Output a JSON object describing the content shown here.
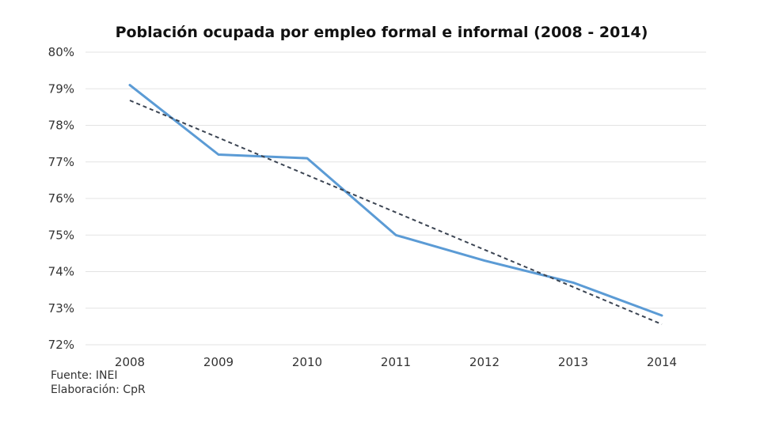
{
  "chart_data": {
    "type": "line",
    "title": "Población ocupada por empleo formal e informal (2008 - 2014)",
    "xlabel": "",
    "ylabel": "",
    "categories": [
      "2008",
      "2009",
      "2010",
      "2011",
      "2012",
      "2013",
      "2014"
    ],
    "series": [
      {
        "values": [
          79.1,
          77.2,
          77.1,
          75.0,
          74.3,
          73.7,
          72.8
        ],
        "color": "#5b9bd5"
      },
      {
        "type": "trendline",
        "values": [
          78.68,
          77.66,
          76.64,
          75.62,
          74.6,
          73.58,
          72.56
        ],
        "color": "#3b4452"
      }
    ],
    "ylim": [
      72,
      80
    ],
    "yticks": [
      72,
      73,
      74,
      75,
      76,
      77,
      78,
      79,
      80
    ],
    "ytick_labels": [
      "72%",
      "73%",
      "74%",
      "75%",
      "76%",
      "77%",
      "78%",
      "79%",
      "80%"
    ],
    "grid": true,
    "legend": "none"
  },
  "footer": {
    "source": "Fuente: INEI",
    "credit": "Elaboración: CpR"
  }
}
